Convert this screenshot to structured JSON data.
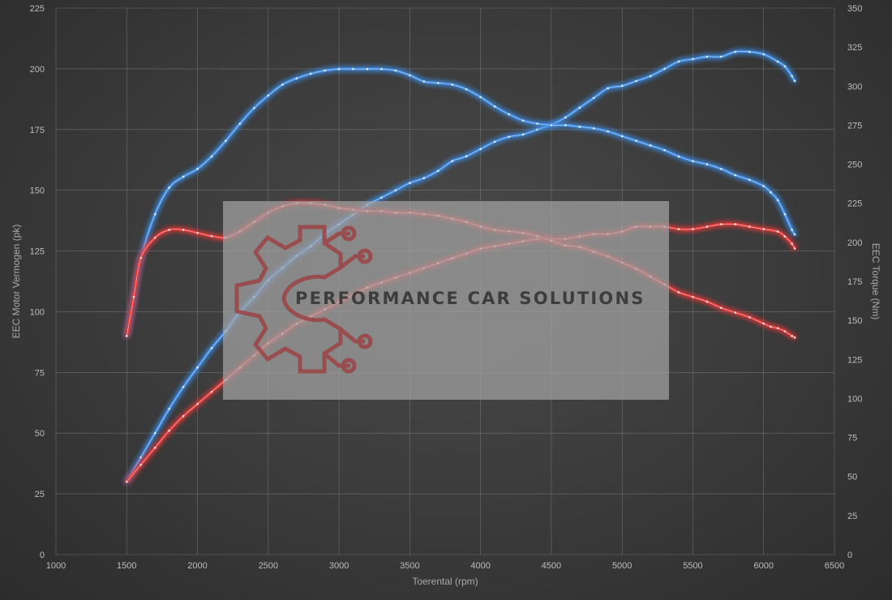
{
  "chart_data": {
    "type": "line",
    "xlabel": "Toerental (rpm)",
    "ylabel_left": "EEC Motor Vermogen (pk)",
    "ylabel_right": "EEC Torque (Nm)",
    "xlim": [
      1000,
      6500
    ],
    "ylim_left": [
      0,
      225
    ],
    "ylim_right": [
      0,
      350
    ],
    "x_ticks": [
      1000,
      1500,
      2000,
      2500,
      3000,
      3500,
      4000,
      4500,
      5000,
      5500,
      6000,
      6500
    ],
    "y_left_ticks": [
      0,
      25,
      50,
      75,
      100,
      125,
      150,
      175,
      200,
      225
    ],
    "y_right_ticks": [
      0,
      25,
      50,
      75,
      100,
      125,
      150,
      175,
      200,
      225,
      250,
      275,
      300,
      325,
      350
    ],
    "grid": true,
    "series": [
      {
        "role": "tuned_power",
        "axis": "left",
        "color": "#3f8be0",
        "x": [
          1500,
          1600,
          1700,
          1800,
          1900,
          2000,
          2100,
          2200,
          2300,
          2400,
          2500,
          2600,
          2700,
          2800,
          2900,
          3000,
          3100,
          3200,
          3300,
          3400,
          3500,
          3600,
          3700,
          3800,
          3900,
          4000,
          4100,
          4200,
          4300,
          4400,
          4500,
          4600,
          4700,
          4800,
          4900,
          5000,
          5100,
          5200,
          5300,
          5400,
          5500,
          5600,
          5700,
          5800,
          5900,
          6000,
          6100,
          6150,
          6200,
          6220
        ],
        "values": [
          30,
          40,
          50,
          60,
          69,
          77,
          85,
          92,
          100,
          106,
          113,
          118,
          123,
          127,
          132,
          136,
          140,
          144,
          147,
          150,
          153,
          155,
          158,
          162,
          164,
          167,
          170,
          172,
          173,
          175,
          177,
          180,
          184,
          188,
          192,
          193,
          195,
          197,
          200,
          203,
          204,
          205,
          205,
          207,
          207,
          206,
          203,
          201,
          197,
          195
        ]
      },
      {
        "role": "tuned_torque",
        "axis": "right",
        "color": "#3f8be0",
        "x": [
          1500,
          1550,
          1600,
          1700,
          1800,
          1900,
          2000,
          2100,
          2200,
          2300,
          2400,
          2500,
          2600,
          2700,
          2800,
          2900,
          3000,
          3100,
          3200,
          3300,
          3400,
          3500,
          3600,
          3700,
          3800,
          3900,
          4000,
          4100,
          4200,
          4300,
          4400,
          4500,
          4600,
          4700,
          4800,
          4900,
          5000,
          5100,
          5200,
          5300,
          5400,
          5500,
          5600,
          5700,
          5800,
          5900,
          6000,
          6050,
          6100,
          6150,
          6200,
          6220
        ],
        "values": [
          140,
          165,
          190,
          218,
          235,
          242,
          247,
          255,
          265,
          276,
          286,
          294,
          301,
          305,
          308,
          310,
          311,
          311,
          311,
          311,
          310,
          307,
          303,
          302,
          301,
          298,
          293,
          287,
          282,
          278,
          276,
          275,
          275,
          274,
          273,
          271,
          268,
          265,
          262,
          259,
          255,
          252,
          250,
          247,
          243,
          240,
          236,
          232,
          227,
          218,
          208,
          205
        ]
      },
      {
        "role": "stock_power",
        "axis": "left",
        "color": "#e03a3a",
        "x": [
          1500,
          1600,
          1700,
          1800,
          1900,
          2000,
          2100,
          2200,
          2300,
          2400,
          2500,
          2600,
          2700,
          2800,
          2900,
          3000,
          3100,
          3200,
          3300,
          3400,
          3500,
          3600,
          3700,
          3800,
          3900,
          4000,
          4100,
          4200,
          4300,
          4400,
          4500,
          4600,
          4700,
          4800,
          4900,
          5000,
          5100,
          5200,
          5300,
          5400,
          5500,
          5600,
          5700,
          5800,
          5900,
          6000,
          6100,
          6150,
          6200,
          6220
        ],
        "values": [
          30,
          37,
          44,
          51,
          57,
          62,
          67,
          72,
          77,
          82,
          87,
          91,
          95,
          98,
          101,
          104,
          107,
          110,
          112,
          114,
          116,
          118,
          120,
          122,
          124,
          126,
          127,
          128,
          129,
          130,
          130,
          130,
          131,
          132,
          132,
          133,
          135,
          135,
          135,
          134,
          134,
          135,
          136,
          136,
          135,
          134,
          133,
          131,
          128,
          126
        ]
      },
      {
        "role": "stock_torque",
        "axis": "right",
        "color": "#e03a3a",
        "x": [
          1500,
          1550,
          1600,
          1700,
          1800,
          1900,
          2000,
          2100,
          2200,
          2300,
          2400,
          2500,
          2600,
          2700,
          2800,
          2900,
          3000,
          3100,
          3200,
          3300,
          3400,
          3500,
          3600,
          3700,
          3800,
          3900,
          4000,
          4100,
          4200,
          4300,
          4400,
          4500,
          4600,
          4700,
          4800,
          4900,
          5000,
          5100,
          5200,
          5300,
          5400,
          5500,
          5600,
          5700,
          5800,
          5900,
          6000,
          6050,
          6100,
          6150,
          6200,
          6220
        ],
        "values": [
          140,
          165,
          190,
          203,
          208,
          208,
          206,
          204,
          203,
          207,
          213,
          219,
          223,
          225,
          225,
          224,
          222,
          221,
          220,
          220,
          219,
          219,
          218,
          217,
          215,
          213,
          210,
          208,
          207,
          206,
          204,
          201,
          198,
          197,
          194,
          191,
          187,
          183,
          178,
          173,
          168,
          165,
          162,
          158,
          155,
          152,
          148,
          146,
          145,
          143,
          140,
          139
        ]
      }
    ]
  },
  "watermark": {
    "text": "PERFORMANCE CAR SOLUTIONS",
    "icon": "gear-circuit-logo"
  }
}
